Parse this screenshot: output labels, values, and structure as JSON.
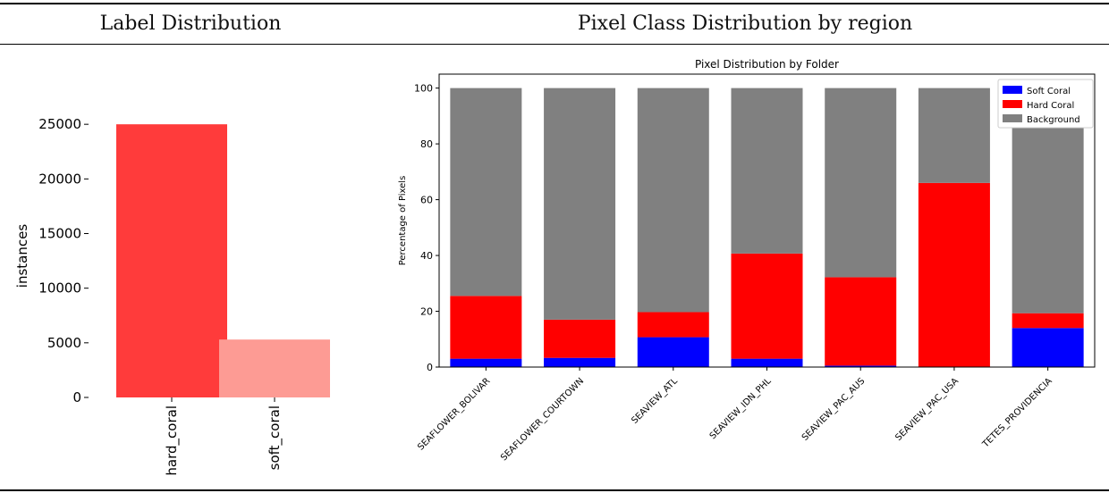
{
  "table": {
    "headers": [
      "Label Distribution",
      "Pixel Class Distribution by region"
    ]
  },
  "chart_data": [
    {
      "type": "bar",
      "title": "",
      "xlabel": "",
      "ylabel": "instances",
      "categories": [
        "hard_coral",
        "soft_coral"
      ],
      "values": [
        25000,
        5300
      ],
      "colors": [
        "#ff3b3b",
        "#fd9b94"
      ],
      "yticks": [
        0,
        5000,
        10000,
        15000,
        20000,
        25000
      ],
      "ylim": [
        0,
        30000
      ]
    },
    {
      "type": "bar",
      "stacked": true,
      "title": "Pixel Distribution by Folder",
      "xlabel": "",
      "ylabel": "Percentage of Pixels",
      "categories": [
        "SEAFLOWER_BOLIVAR",
        "SEAFLOWER_COURTOWN",
        "SEAVIEW_ATL",
        "SEAVIEW_IDN_PHL",
        "SEAVIEW_PAC_AUS",
        "SEAVIEW_PAC_USA",
        "TETES_PROVIDENCIA"
      ],
      "series": [
        {
          "name": "Soft Coral",
          "color": "#0000ff",
          "values": [
            3.0,
            3.3,
            10.7,
            3.0,
            0.5,
            0.0,
            14.0
          ]
        },
        {
          "name": "Hard Coral",
          "color": "#ff0000",
          "values": [
            22.5,
            13.7,
            9.0,
            37.7,
            31.7,
            66.0,
            5.3
          ]
        },
        {
          "name": "Background",
          "color": "#808080",
          "values": [
            74.5,
            83.0,
            80.3,
            59.3,
            67.8,
            34.0,
            80.7
          ]
        }
      ],
      "yticks": [
        0,
        20,
        40,
        60,
        80,
        100
      ],
      "ylim": [
        0,
        105
      ],
      "legend": "top-right"
    }
  ]
}
